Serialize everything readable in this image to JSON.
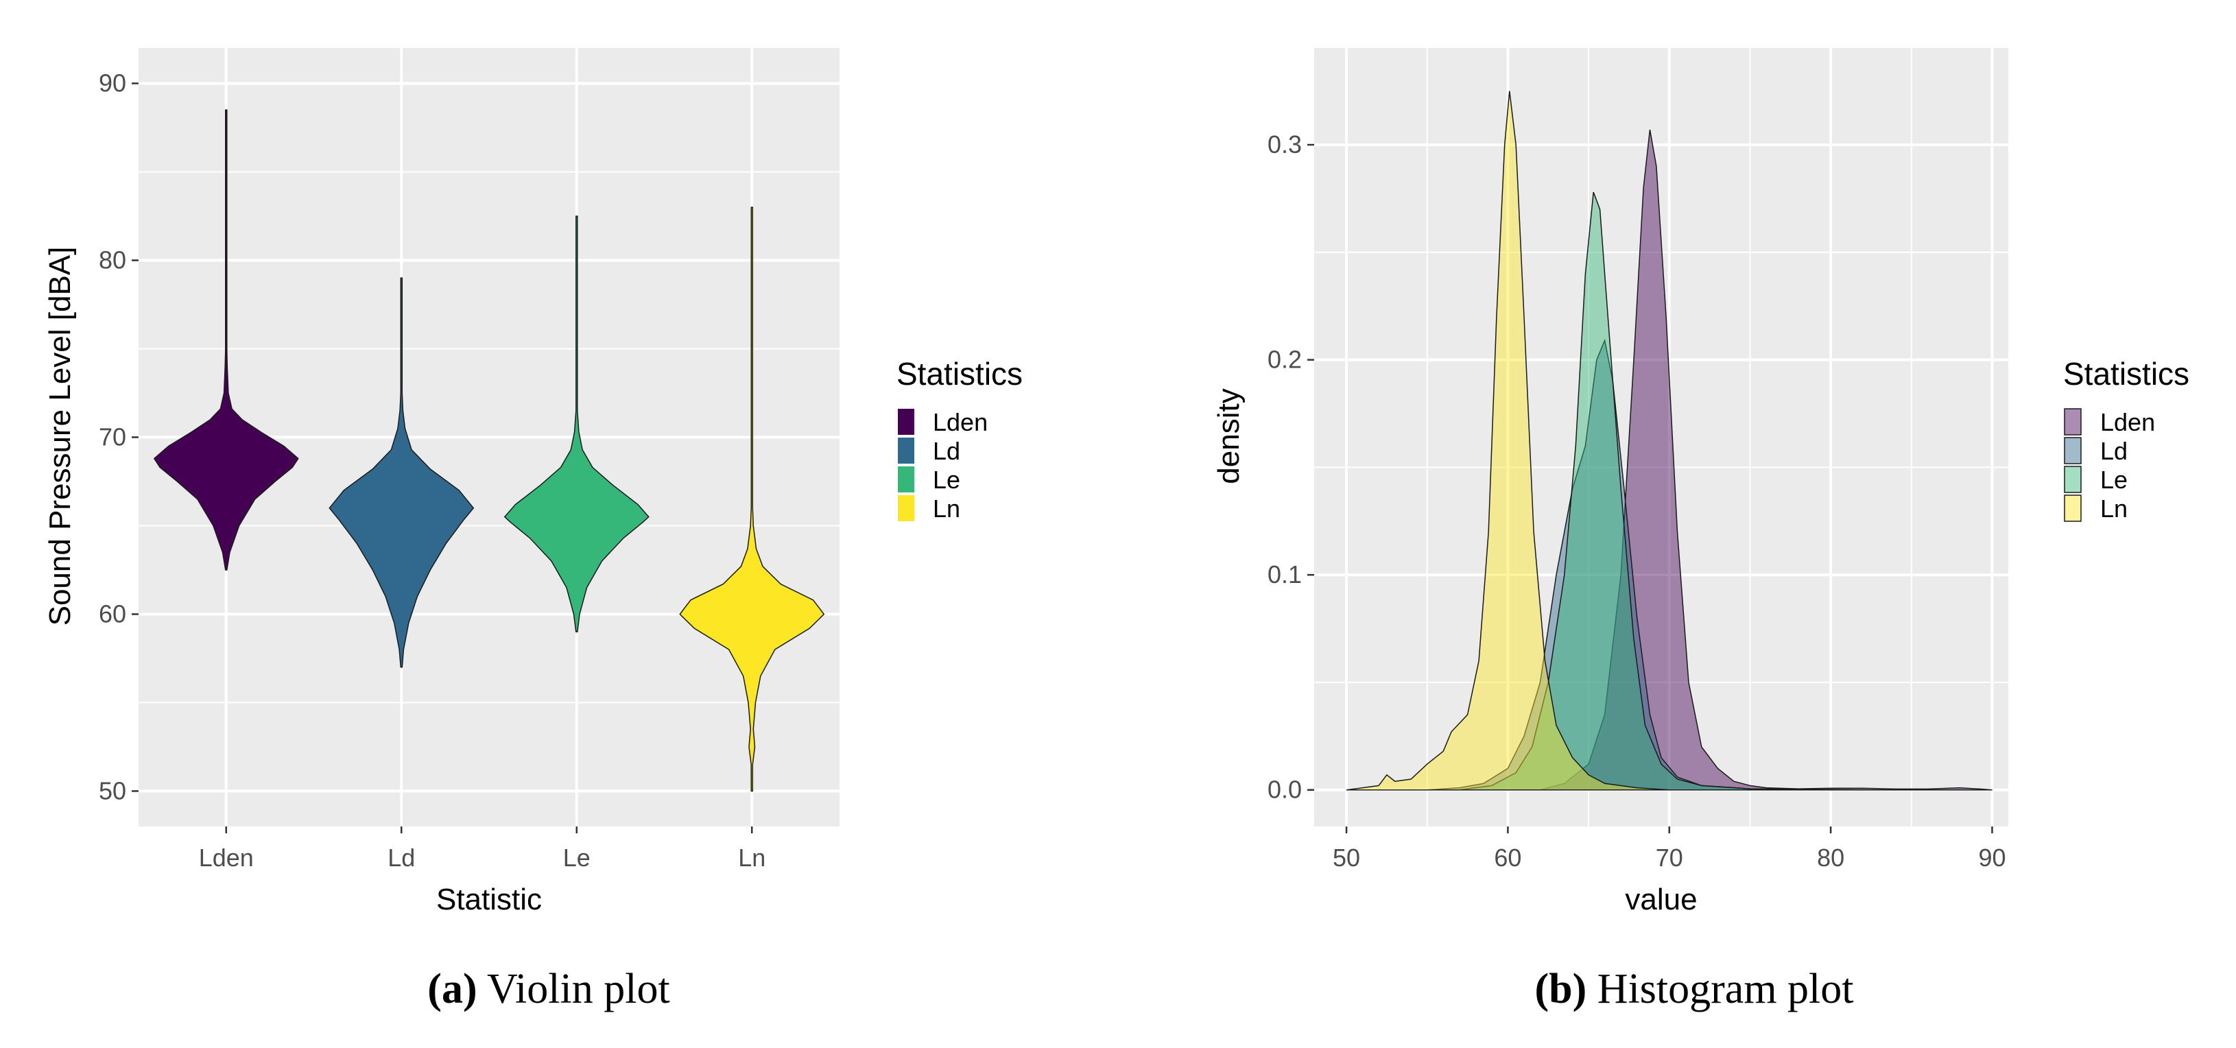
{
  "chart_data": [
    {
      "type": "violin",
      "id": "violin",
      "caption_letter": "a",
      "caption_text": "Violin plot",
      "xlabel": "Statistic",
      "ylabel": "Sound Pressure Level [dBA]",
      "categories": [
        "Lden",
        "Ld",
        "Le",
        "Ln"
      ],
      "ylim": [
        48,
        92
      ],
      "yticks": [
        50,
        60,
        70,
        80,
        90
      ],
      "ytick_labels": [
        "50",
        "60",
        "70",
        "80",
        "90"
      ],
      "grid": true,
      "legend": {
        "title": "Statistics",
        "position": "right"
      },
      "series": [
        {
          "name": "Lden",
          "color": "#440154",
          "min": 62.5,
          "max": 88.5,
          "profile": [
            [
              62.5,
              0.0
            ],
            [
              63.5,
              0.05
            ],
            [
              65,
              0.18
            ],
            [
              66.5,
              0.4
            ],
            [
              67.5,
              0.68
            ],
            [
              68.3,
              0.92
            ],
            [
              68.8,
              1.0
            ],
            [
              69.5,
              0.8
            ],
            [
              70.3,
              0.48
            ],
            [
              71,
              0.22
            ],
            [
              71.6,
              0.08
            ],
            [
              72.5,
              0.03
            ],
            [
              74,
              0.015
            ],
            [
              75,
              0.004
            ],
            [
              88.5,
              0.002
            ]
          ]
        },
        {
          "name": "Ld",
          "color": "#31688e",
          "min": 57,
          "max": 79,
          "profile": [
            [
              57,
              0.0
            ],
            [
              58,
              0.03
            ],
            [
              59.5,
              0.1
            ],
            [
              61,
              0.22
            ],
            [
              62.5,
              0.4
            ],
            [
              64,
              0.62
            ],
            [
              65.3,
              0.86
            ],
            [
              66,
              1.0
            ],
            [
              67,
              0.8
            ],
            [
              68.2,
              0.4
            ],
            [
              69.3,
              0.14
            ],
            [
              70.5,
              0.05
            ],
            [
              71.5,
              0.02
            ],
            [
              72.5,
              0.006
            ],
            [
              79,
              0.002
            ]
          ]
        },
        {
          "name": "Le",
          "color": "#35b779",
          "min": 59,
          "max": 82.5,
          "profile": [
            [
              59,
              0.0
            ],
            [
              60,
              0.04
            ],
            [
              61.5,
              0.14
            ],
            [
              63,
              0.35
            ],
            [
              64.3,
              0.65
            ],
            [
              65.2,
              0.92
            ],
            [
              65.5,
              1.0
            ],
            [
              66.2,
              0.85
            ],
            [
              67.3,
              0.5
            ],
            [
              68.3,
              0.22
            ],
            [
              69.3,
              0.08
            ],
            [
              70.3,
              0.03
            ],
            [
              71.5,
              0.008
            ],
            [
              82.5,
              0.002
            ]
          ]
        },
        {
          "name": "Ln",
          "color": "#fde725",
          "min": 50,
          "max": 83,
          "profile": [
            [
              50,
              0.0
            ],
            [
              51.5,
              0.01
            ],
            [
              52.5,
              0.04
            ],
            [
              53.5,
              0.02
            ],
            [
              55,
              0.05
            ],
            [
              56.5,
              0.12
            ],
            [
              58,
              0.32
            ],
            [
              59.2,
              0.8
            ],
            [
              60,
              1.0
            ],
            [
              60.8,
              0.85
            ],
            [
              61.7,
              0.4
            ],
            [
              62.7,
              0.15
            ],
            [
              63.7,
              0.06
            ],
            [
              65,
              0.02
            ],
            [
              66,
              0.005
            ],
            [
              83,
              0.002
            ]
          ]
        }
      ]
    },
    {
      "type": "area",
      "id": "density",
      "caption_letter": "b",
      "caption_text": "Histogram plot",
      "xlabel": "value",
      "ylabel": "density",
      "xlim": [
        48,
        91
      ],
      "ylim": [
        -0.017,
        0.345
      ],
      "xticks": [
        50,
        60,
        70,
        80,
        90
      ],
      "xtick_labels": [
        "50",
        "60",
        "70",
        "80",
        "90"
      ],
      "yticks": [
        0.0,
        0.1,
        0.2,
        0.3
      ],
      "ytick_labels": [
        "0.0",
        "0.1",
        "0.2",
        "0.3"
      ],
      "grid": true,
      "legend": {
        "title": "Statistics",
        "position": "right"
      },
      "series": [
        {
          "name": "Lden",
          "color": "#440154",
          "points": [
            [
              62,
              0.0
            ],
            [
              63.5,
              0.003
            ],
            [
              65,
              0.012
            ],
            [
              66,
              0.035
            ],
            [
              67,
              0.1
            ],
            [
              67.8,
              0.2
            ],
            [
              68.4,
              0.28
            ],
            [
              68.8,
              0.307
            ],
            [
              69.2,
              0.29
            ],
            [
              69.8,
              0.22
            ],
            [
              70.5,
              0.12
            ],
            [
              71.2,
              0.05
            ],
            [
              72,
              0.02
            ],
            [
              73,
              0.01
            ],
            [
              74,
              0.004
            ],
            [
              75,
              0.002
            ],
            [
              76,
              0.001
            ],
            [
              78,
              0.0005
            ],
            [
              80,
              0.0008
            ],
            [
              82,
              0.0008
            ],
            [
              84,
              0.0004
            ],
            [
              86,
              0.0004
            ],
            [
              88,
              0.001
            ],
            [
              89.5,
              0.0003
            ],
            [
              90,
              0.0
            ]
          ]
        },
        {
          "name": "Ld",
          "color": "#31688e",
          "points": [
            [
              55,
              0.0
            ],
            [
              57,
              0.001
            ],
            [
              58.5,
              0.003
            ],
            [
              60,
              0.01
            ],
            [
              61,
              0.025
            ],
            [
              62,
              0.05
            ],
            [
              63,
              0.1
            ],
            [
              64,
              0.14
            ],
            [
              64.8,
              0.16
            ],
            [
              65.5,
              0.2
            ],
            [
              66,
              0.209
            ],
            [
              66.5,
              0.19
            ],
            [
              67.2,
              0.14
            ],
            [
              68,
              0.08
            ],
            [
              68.8,
              0.035
            ],
            [
              69.5,
              0.015
            ],
            [
              70.5,
              0.006
            ],
            [
              72,
              0.002
            ],
            [
              75,
              0.0005
            ],
            [
              79,
              0.0
            ]
          ]
        },
        {
          "name": "Le",
          "color": "#35b779",
          "points": [
            [
              57,
              0.0
            ],
            [
              59,
              0.002
            ],
            [
              60.5,
              0.008
            ],
            [
              61.5,
              0.02
            ],
            [
              62.5,
              0.05
            ],
            [
              63.5,
              0.1
            ],
            [
              64.2,
              0.16
            ],
            [
              64.8,
              0.24
            ],
            [
              65.3,
              0.278
            ],
            [
              65.7,
              0.27
            ],
            [
              66.2,
              0.22
            ],
            [
              67,
              0.14
            ],
            [
              67.8,
              0.07
            ],
            [
              68.5,
              0.03
            ],
            [
              69.5,
              0.012
            ],
            [
              70.5,
              0.005
            ],
            [
              72,
              0.002
            ],
            [
              75,
              0.0005
            ],
            [
              82.5,
              0.0
            ]
          ]
        },
        {
          "name": "Ln",
          "color": "#fde725",
          "points": [
            [
              50,
              0.0
            ],
            [
              51,
              0.001
            ],
            [
              52,
              0.002
            ],
            [
              52.5,
              0.007
            ],
            [
              53,
              0.004
            ],
            [
              54,
              0.005
            ],
            [
              55,
              0.012
            ],
            [
              56,
              0.018
            ],
            [
              56.5,
              0.027
            ],
            [
              57.5,
              0.035
            ],
            [
              58.2,
              0.06
            ],
            [
              58.8,
              0.12
            ],
            [
              59.3,
              0.22
            ],
            [
              59.8,
              0.3
            ],
            [
              60.1,
              0.325
            ],
            [
              60.5,
              0.3
            ],
            [
              61,
              0.22
            ],
            [
              61.6,
              0.12
            ],
            [
              62.3,
              0.06
            ],
            [
              63,
              0.03
            ],
            [
              64,
              0.015
            ],
            [
              65,
              0.007
            ],
            [
              66,
              0.003
            ],
            [
              68,
              0.001
            ],
            [
              70,
              0.0
            ]
          ]
        }
      ]
    }
  ]
}
